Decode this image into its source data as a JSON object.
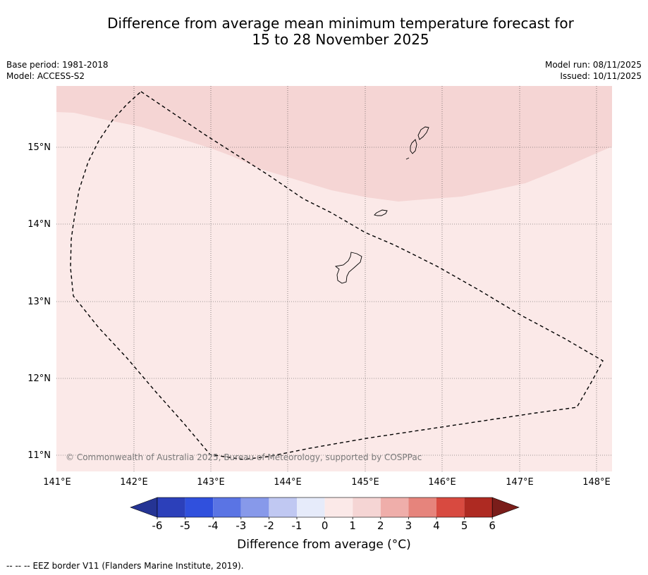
{
  "header": {
    "title_line1": "Difference from average mean minimum temperature forecast for",
    "title_line2": "15 to 28 November 2025",
    "base_period": "Base period: 1981-2018",
    "model": "Model: ACCESS-S2",
    "model_run": "Model run: 08/11/2025",
    "issued": "Issued: 10/11/2025"
  },
  "map": {
    "lat_labels": [
      "15°N",
      "14°N",
      "13°N",
      "12°N",
      "11°N"
    ],
    "lon_labels": [
      "141°E",
      "142°E",
      "143°E",
      "144°E",
      "145°E",
      "146°E",
      "147°E",
      "148°E"
    ],
    "copyright": "© Commonwealth of Australia 2025, Bureau of Meteorology, supported by COSPPac",
    "regions": [
      {
        "name": "1 to 2 °C",
        "color": "#f5d5d4"
      },
      {
        "name": "0 to 1 °C",
        "color": "#fbe9e8"
      }
    ]
  },
  "colorbar": {
    "ticks": [
      "-6",
      "-5",
      "-4",
      "-3",
      "-2",
      "-1",
      "0",
      "1",
      "2",
      "3",
      "4",
      "5",
      "6"
    ],
    "colors": [
      "#253494",
      "#2c40ba",
      "#3050dd",
      "#5a74e4",
      "#8799ea",
      "#c0c8f2",
      "#e6ebfa",
      "#fbe9e8",
      "#f5d5d4",
      "#efaeaa",
      "#e6847c",
      "#d84a40",
      "#ae2a22",
      "#7a1d1a"
    ],
    "label": "Difference from average (°C)"
  },
  "footer": {
    "legend_symbol": "-- -- --",
    "legend_text": "EEZ border V11 (Flanders Marine Institute, 2019)."
  }
}
